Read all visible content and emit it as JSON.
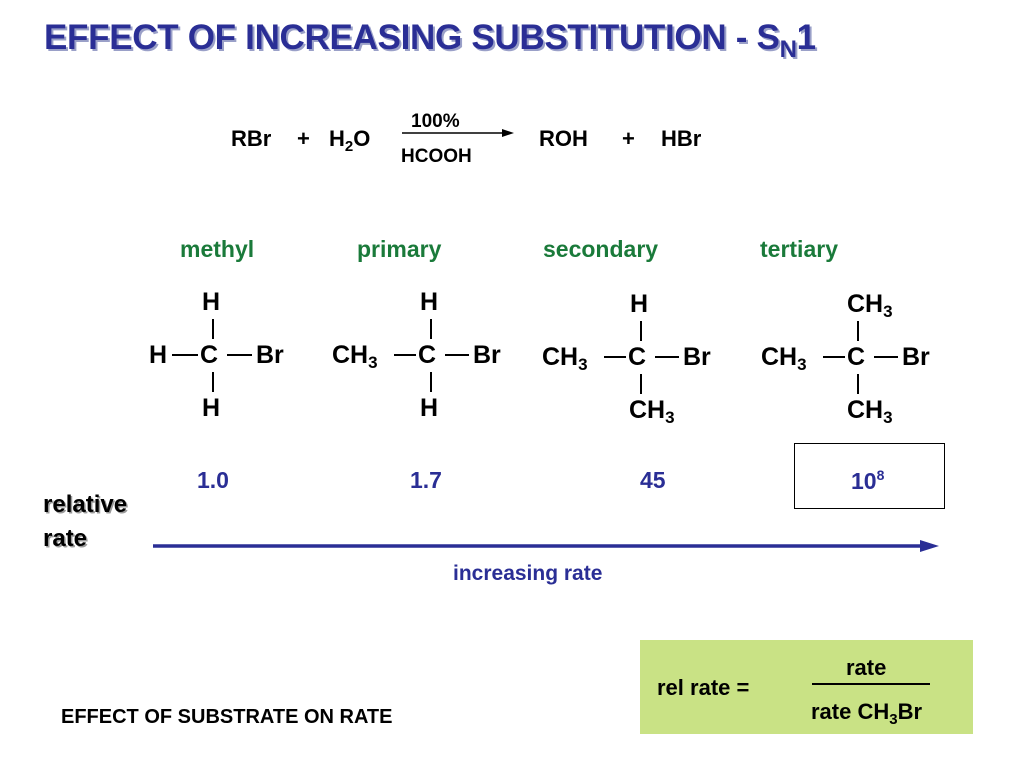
{
  "title": {
    "main": "EFFECT OF INCREASING SUBSTITUTION  -  S",
    "sub": "N",
    "end": "1"
  },
  "reaction": {
    "reactant1": "RBr",
    "plus1": "+",
    "water_pre": "H",
    "water_sub": "2",
    "water_post": "O",
    "above_arrow": "100%",
    "below_arrow": "HCOOH",
    "product1": "ROH",
    "plus2": "+",
    "product2": "HBr"
  },
  "classes": [
    "methyl",
    "primary",
    "secondary",
    "tertiary"
  ],
  "atoms": {
    "H": "H",
    "C": "C",
    "Br": "Br",
    "CH": "CH",
    "three": "3"
  },
  "rates": {
    "methyl": "1.0",
    "primary": "1.7",
    "secondary": "45",
    "tertiary_base": "10",
    "tertiary_exp": "8"
  },
  "relative_rate_label": {
    "line1": "relative",
    "line2": "rate"
  },
  "increasing_rate": "increasing rate",
  "footer": "EFFECT OF SUBSTRATE ON RATE",
  "formula": {
    "lhs": "rel rate  =",
    "numerator": "rate",
    "denominator_pre": "rate CH",
    "denominator_sub": "3",
    "denominator_post": "Br"
  },
  "colors": {
    "title": "#2a2e95",
    "class_labels": "#1a7a3a",
    "rates": "#2a2e95",
    "formula_bg": "#c9e285"
  }
}
